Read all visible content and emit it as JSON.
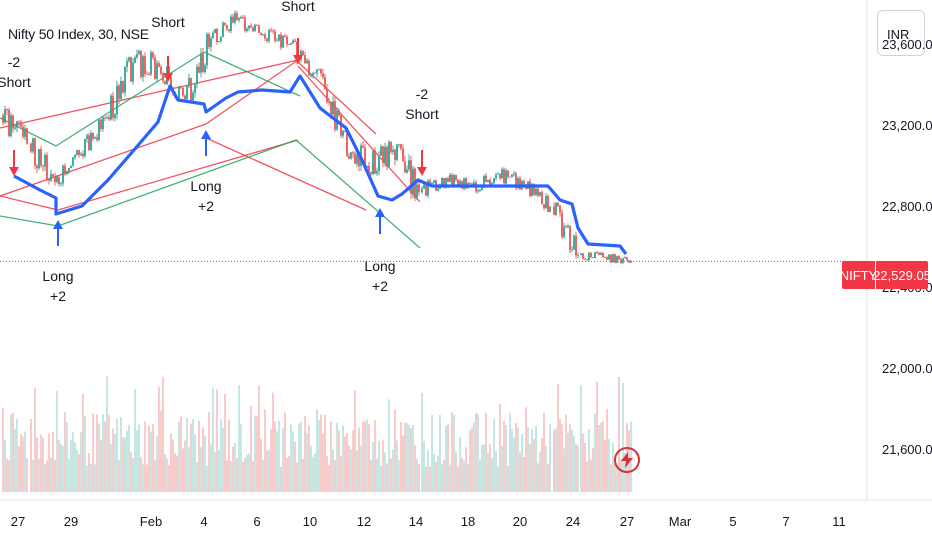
{
  "header": {
    "title": "Nifty 50 Index, 30, NSE",
    "currency": "INR"
  },
  "price_tag": {
    "symbol": "NIFTY",
    "value": "22,529.05"
  },
  "icons": {
    "flash": "lightning-bolt-icon"
  },
  "colors": {
    "up": "#26a69a",
    "down": "#ef5350",
    "supertrend": "#2962ff",
    "channel_red": "#f23645",
    "channel_green": "#26a65b",
    "short_arrow": "#f23645",
    "long_arrow": "#2962ff",
    "price_line": "#f23645"
  },
  "signals": [
    {
      "type": "short",
      "label": "Short",
      "qty": "-2",
      "date": "2025-01-27"
    },
    {
      "type": "long",
      "label": "Long",
      "qty": "+2",
      "date": "2025-01-29"
    },
    {
      "type": "short",
      "label": "Short",
      "qty": "",
      "date": "2025-02-03"
    },
    {
      "type": "long",
      "label": "Long",
      "qty": "+2",
      "date": "2025-02-04"
    },
    {
      "type": "short",
      "label": "Short",
      "qty": "",
      "date": "2025-02-10"
    },
    {
      "type": "long",
      "label": "Long",
      "qty": "+2",
      "date": "2025-02-13"
    },
    {
      "type": "short",
      "label": "Short",
      "qty": "-2",
      "date": "2025-02-14"
    }
  ],
  "chart_data": {
    "type": "candlestick",
    "symbol": "NIFTY",
    "interval": "30",
    "exchange": "NSE",
    "last_price": 22529.05,
    "ylim": [
      21450,
      24050
    ],
    "grid": false,
    "y_ticks": [
      21600,
      22000,
      22400,
      22800,
      23200,
      23600
    ],
    "y_tick_labels": [
      "21,600.00",
      "22,000.00",
      "22,400.00",
      "22,800.00",
      "23,200.00",
      "23,600.00"
    ],
    "x_tick_labels": [
      "27",
      "29",
      "Feb",
      "4",
      "6",
      "10",
      "12",
      "14",
      "18",
      "20",
      "24",
      "27",
      "Mar",
      "5",
      "7",
      "11"
    ],
    "daily_ohlc": [
      {
        "date": "2025-01-27",
        "open": 23250,
        "high": 23360,
        "low": 23050,
        "close": 23110
      },
      {
        "date": "2025-01-28",
        "open": 23110,
        "high": 23140,
        "low": 22830,
        "close": 22920
      },
      {
        "date": "2025-01-29",
        "open": 22920,
        "high": 23080,
        "low": 22880,
        "close": 23060
      },
      {
        "date": "2025-01-30",
        "open": 23060,
        "high": 23250,
        "low": 23010,
        "close": 23240
      },
      {
        "date": "2025-01-31",
        "open": 23240,
        "high": 23540,
        "low": 23200,
        "close": 23510
      },
      {
        "date": "2025-02-01",
        "open": 23510,
        "high": 23640,
        "low": 23330,
        "close": 23490
      },
      {
        "date": "2025-02-03",
        "open": 23490,
        "high": 23520,
        "low": 23270,
        "close": 23330
      },
      {
        "date": "2025-02-04",
        "open": 23330,
        "high": 23660,
        "low": 23300,
        "close": 23630
      },
      {
        "date": "2025-02-05",
        "open": 23630,
        "high": 23800,
        "low": 23600,
        "close": 23720
      },
      {
        "date": "2025-02-06",
        "open": 23720,
        "high": 23770,
        "low": 23620,
        "close": 23650
      },
      {
        "date": "2025-02-07",
        "open": 23650,
        "high": 23720,
        "low": 23550,
        "close": 23600
      },
      {
        "date": "2025-02-10",
        "open": 23600,
        "high": 23640,
        "low": 23420,
        "close": 23460
      },
      {
        "date": "2025-02-11",
        "open": 23460,
        "high": 23480,
        "low": 23120,
        "close": 23150
      },
      {
        "date": "2025-02-12",
        "open": 23150,
        "high": 23180,
        "low": 22860,
        "close": 23000
      },
      {
        "date": "2025-02-13",
        "open": 23000,
        "high": 23250,
        "low": 22950,
        "close": 23080
      },
      {
        "date": "2025-02-14",
        "open": 23080,
        "high": 23110,
        "low": 22740,
        "close": 22870
      },
      {
        "date": "2025-02-17",
        "open": 22870,
        "high": 22970,
        "low": 22800,
        "close": 22940
      },
      {
        "date": "2025-02-18",
        "open": 22940,
        "high": 22980,
        "low": 22850,
        "close": 22900
      },
      {
        "date": "2025-02-19",
        "open": 22900,
        "high": 23000,
        "low": 22820,
        "close": 22960
      },
      {
        "date": "2025-02-20",
        "open": 22960,
        "high": 23050,
        "low": 22880,
        "close": 22910
      },
      {
        "date": "2025-02-21",
        "open": 22910,
        "high": 22950,
        "low": 22780,
        "close": 22800
      },
      {
        "date": "2025-02-24",
        "open": 22800,
        "high": 22820,
        "low": 22530,
        "close": 22560
      },
      {
        "date": "2025-02-25",
        "open": 22560,
        "high": 22620,
        "low": 22520,
        "close": 22550
      },
      {
        "date": "2025-02-27",
        "open": 22550,
        "high": 22600,
        "low": 22500,
        "close": 22529.05
      }
    ]
  }
}
